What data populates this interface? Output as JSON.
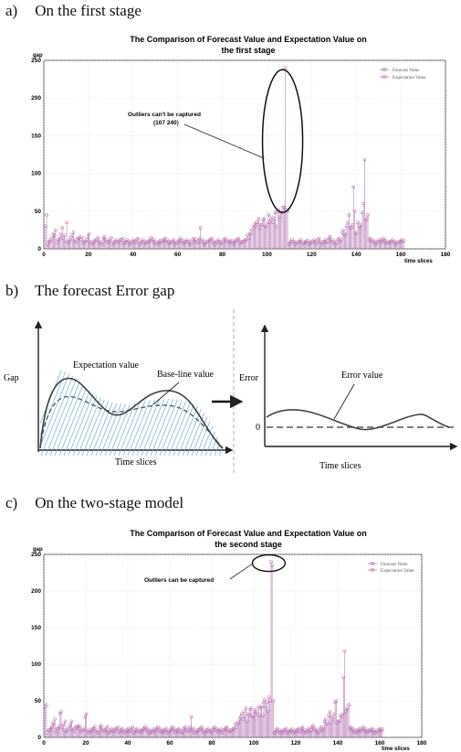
{
  "sections": [
    {
      "letter": "a)",
      "title": "On the first stage"
    },
    {
      "letter": "b)",
      "title": "The forecast Error gap"
    },
    {
      "letter": "c)",
      "title": "On the two-stage model"
    }
  ],
  "chart_data": [
    {
      "type": "scatter",
      "title_line1": "The Comparison of Forecast Value and Expectation Value on",
      "title_line2": "the first stage",
      "ylabel": "gap",
      "xlabel": "time slices",
      "xlim": [
        0,
        180
      ],
      "ylim": [
        0,
        250
      ],
      "xticks": [
        0,
        20,
        40,
        60,
        80,
        100,
        120,
        140,
        160,
        180
      ],
      "yticks": [
        0,
        50,
        100,
        150,
        200,
        250
      ],
      "legend": [
        "Forecast Value",
        "Expectation Value"
      ],
      "legend_position": "top-right",
      "annotation_line1": "Outliers can't be captured",
      "annotation_line2": "(107 240)",
      "series": [
        {
          "name": "Forecast Value",
          "color": "#a070b8",
          "values": [
            30,
            6,
            10,
            15,
            18,
            8,
            12,
            20,
            14,
            10,
            8,
            12,
            18,
            10,
            9,
            14,
            12,
            8,
            10,
            16,
            8,
            6,
            10,
            12,
            8,
            6,
            14,
            10,
            8,
            12,
            6,
            10,
            8,
            9,
            12,
            7,
            10,
            8,
            6,
            10,
            8,
            12,
            6,
            10,
            8,
            7,
            9,
            12,
            10,
            8,
            6,
            9,
            8,
            12,
            10,
            7,
            8,
            10,
            6,
            8,
            12,
            9,
            7,
            10,
            8,
            6,
            12,
            10,
            8,
            14,
            10,
            6,
            8,
            10,
            12,
            8,
            6,
            10,
            8,
            7,
            12,
            10,
            8,
            9,
            6,
            10,
            12,
            8,
            8,
            10,
            12,
            14,
            20,
            28,
            30,
            35,
            28,
            32,
            40,
            30,
            45,
            38,
            35,
            48,
            50,
            42,
            48,
            55,
            52,
            6,
            10,
            8,
            6,
            8,
            10,
            6,
            8,
            9,
            6,
            8,
            10,
            7,
            12,
            8,
            6,
            10,
            8,
            14,
            10,
            8,
            6,
            12,
            10,
            22,
            18,
            30,
            45,
            28,
            82,
            20,
            35,
            28,
            48,
            118,
            40,
            12,
            10,
            8,
            6,
            10,
            8,
            12,
            9,
            7,
            8,
            10,
            8,
            6,
            8,
            10,
            9
          ]
        },
        {
          "name": "Expectation Value",
          "color": "#c070a8",
          "values": [
            45,
            10,
            12,
            20,
            25,
            12,
            15,
            28,
            18,
            35,
            10,
            15,
            22,
            12,
            14,
            16,
            15,
            10,
            12,
            20,
            10,
            8,
            12,
            15,
            10,
            8,
            16,
            12,
            10,
            15,
            8,
            12,
            10,
            12,
            14,
            9,
            12,
            10,
            8,
            12,
            10,
            14,
            8,
            12,
            10,
            9,
            11,
            15,
            12,
            10,
            8,
            11,
            10,
            14,
            12,
            9,
            10,
            12,
            8,
            10,
            14,
            11,
            9,
            12,
            10,
            8,
            14,
            12,
            10,
            28,
            12,
            8,
            10,
            12,
            14,
            10,
            8,
            12,
            10,
            9,
            14,
            12,
            10,
            11,
            8,
            12,
            14,
            10,
            10,
            12,
            18,
            20,
            25,
            32,
            35,
            40,
            32,
            38,
            30,
            35,
            35,
            42,
            40,
            30,
            52,
            48,
            55,
            240,
            50,
            8,
            12,
            10,
            8,
            10,
            12,
            8,
            10,
            11,
            8,
            10,
            12,
            9,
            14,
            10,
            8,
            12,
            10,
            16,
            12,
            10,
            8,
            14,
            12,
            25,
            20,
            35,
            28,
            32,
            50,
            22,
            30,
            32,
            60,
            38,
            45,
            14,
            12,
            10,
            8,
            12,
            10,
            14,
            11,
            9,
            10,
            12,
            10,
            8,
            10,
            12,
            11
          ]
        }
      ]
    },
    {
      "type": "diagram",
      "left_ylabel": "Gap",
      "left_xlabel": "Time slices",
      "left_label_expect": "Expectation value",
      "left_label_base": "Base-line value",
      "right_ylabel": "Error",
      "right_xlabel": "Time slices",
      "right_label_error": "Error value",
      "right_zero": "0"
    },
    {
      "type": "scatter",
      "title_line1": "The Comparison of Forecast Value and Expectation Value on",
      "title_line2": "the second stage",
      "ylabel": "gap",
      "xlabel": "time slices",
      "xlim": [
        0,
        180
      ],
      "ylim": [
        0,
        250
      ],
      "xticks": [
        0,
        20,
        40,
        60,
        80,
        100,
        120,
        140,
        160,
        180
      ],
      "yticks": [
        0,
        50,
        100,
        150,
        200,
        250
      ],
      "legend": [
        "Forecast Value",
        "Expectation Value"
      ],
      "legend_position": "top-right",
      "annotation_line1": "Outliers can be captured",
      "series": [
        {
          "name": "Forecast Value",
          "color": "#a070b8",
          "values": [
            42,
            6,
            10,
            14,
            18,
            8,
            12,
            33,
            14,
            10,
            8,
            12,
            18,
            10,
            9,
            14,
            12,
            8,
            10,
            28,
            8,
            6,
            10,
            12,
            8,
            6,
            14,
            10,
            8,
            12,
            6,
            10,
            8,
            9,
            12,
            7,
            10,
            8,
            6,
            10,
            8,
            12,
            6,
            10,
            8,
            7,
            9,
            12,
            10,
            8,
            6,
            9,
            8,
            12,
            10,
            7,
            8,
            10,
            6,
            8,
            12,
            9,
            7,
            10,
            8,
            6,
            12,
            10,
            8,
            14,
            10,
            6,
            8,
            10,
            12,
            8,
            6,
            10,
            8,
            7,
            12,
            10,
            8,
            9,
            6,
            10,
            12,
            8,
            8,
            10,
            12,
            14,
            20,
            28,
            25,
            28,
            22,
            30,
            40,
            28,
            38,
            32,
            30,
            42,
            48,
            42,
            36,
            50,
            235,
            6,
            10,
            8,
            6,
            8,
            10,
            6,
            8,
            9,
            6,
            8,
            10,
            7,
            12,
            8,
            6,
            10,
            8,
            14,
            10,
            8,
            6,
            12,
            10,
            22,
            18,
            30,
            20,
            25,
            48,
            20,
            22,
            28,
            82,
            35,
            40,
            12,
            10,
            8,
            6,
            10,
            8,
            12,
            9,
            7,
            8,
            10,
            8,
            6,
            8,
            10,
            9
          ]
        },
        {
          "name": "Expectation Value",
          "color": "#c070a8",
          "values": [
            45,
            10,
            12,
            20,
            25,
            12,
            15,
            35,
            18,
            22,
            10,
            15,
            22,
            12,
            14,
            16,
            15,
            10,
            12,
            32,
            10,
            8,
            12,
            15,
            10,
            8,
            16,
            12,
            10,
            15,
            8,
            12,
            10,
            12,
            14,
            9,
            12,
            10,
            8,
            12,
            10,
            14,
            8,
            12,
            10,
            9,
            11,
            15,
            12,
            10,
            8,
            11,
            10,
            14,
            12,
            9,
            10,
            12,
            8,
            10,
            14,
            11,
            9,
            12,
            10,
            8,
            14,
            12,
            10,
            28,
            12,
            8,
            10,
            12,
            14,
            10,
            8,
            12,
            10,
            9,
            14,
            12,
            10,
            11,
            8,
            12,
            14,
            10,
            10,
            12,
            18,
            20,
            25,
            32,
            35,
            40,
            32,
            38,
            30,
            35,
            35,
            42,
            40,
            30,
            52,
            48,
            55,
            240,
            50,
            8,
            12,
            10,
            8,
            10,
            12,
            8,
            10,
            11,
            8,
            10,
            12,
            9,
            14,
            10,
            8,
            12,
            10,
            16,
            12,
            10,
            8,
            14,
            12,
            25,
            20,
            35,
            28,
            32,
            50,
            22,
            30,
            32,
            118,
            38,
            45,
            14,
            12,
            10,
            8,
            12,
            10,
            14,
            11,
            9,
            10,
            12,
            10,
            8,
            10,
            12,
            11
          ]
        }
      ]
    }
  ]
}
